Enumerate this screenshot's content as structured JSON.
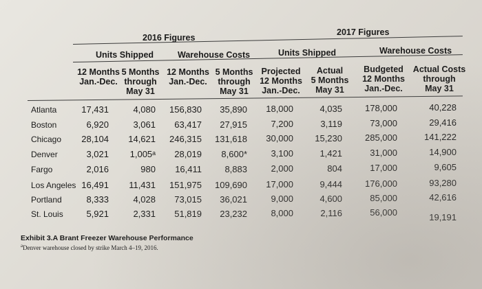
{
  "title_2016": "2016 Figures",
  "title_2017": "2017 Figures",
  "groups": {
    "units_2016": "Units Shipped",
    "warehouse_2016": "Warehouse Costs",
    "units_2017": "Units Shipped",
    "warehouse_2017": "Warehouse Costs"
  },
  "column_headers": [
    [
      "12 Months",
      "Jan.-Dec."
    ],
    [
      "5 Months",
      "through",
      "May 31"
    ],
    [
      "12 Months",
      "Jan.-Dec."
    ],
    [
      "5 Months",
      "through",
      "May 31"
    ],
    [
      "Projected",
      "12 Months",
      "Jan.-Dec."
    ],
    [
      "Actual",
      "5 Months",
      "May 31"
    ],
    [
      "Budgeted",
      "12 Months",
      "Jan.-Dec."
    ],
    [
      "Actual Costs",
      "through",
      "May 31"
    ]
  ],
  "rows": [
    {
      "city": "Atlanta",
      "values": [
        "17,431",
        "4,080",
        "156,830",
        "35,890",
        "18,000",
        "4,035",
        "178,000",
        "40,228"
      ]
    },
    {
      "city": "Boston",
      "values": [
        "6,920",
        "3,061",
        "63,417",
        "27,915",
        "7,200",
        "3,119",
        "73,000",
        "29,416"
      ]
    },
    {
      "city": "Chicago",
      "values": [
        "28,104",
        "14,621",
        "246,315",
        "131,618",
        "30,000",
        "15,230",
        "285,000",
        "141,222"
      ]
    },
    {
      "city": "Denver",
      "values": [
        "3,021",
        "1,005ᵃ",
        "28,019",
        "8,600*",
        "3,100",
        "1,421",
        "31,000",
        "14,900"
      ]
    },
    {
      "city": "Fargo",
      "values": [
        "2,016",
        "980",
        "16,411",
        "8,883",
        "2,000",
        "804",
        "17,000",
        "9,605"
      ]
    },
    {
      "city": "Los Angeles",
      "values": [
        "16,491",
        "11,431",
        "151,975",
        "109,690",
        "17,000",
        "9,444",
        "176,000",
        "93,280"
      ]
    },
    {
      "city": "Portland",
      "values": [
        "8,333",
        "4,028",
        "73,015",
        "36,021",
        "9,000",
        "4,600",
        "85,000",
        "42,616"
      ]
    },
    {
      "city": "St. Louis",
      "values": [
        "5,921",
        "2,331",
        "51,819",
        "23,232",
        "8,000",
        "2,116",
        "56,000",
        "19,191"
      ]
    }
  ],
  "caption": {
    "title": "Exhibit 3.A Brant Freezer Warehouse Performance",
    "note_mark": "a",
    "note": "Denver warehouse closed by strike March 4–19, 2016."
  }
}
